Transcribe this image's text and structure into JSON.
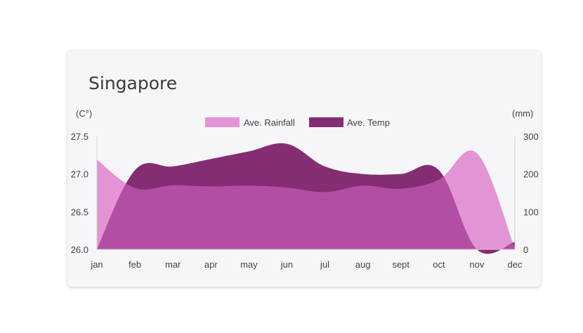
{
  "card": {
    "title": "Singapore"
  },
  "chart_data": {
    "type": "area",
    "categories": [
      "jan",
      "feb",
      "mar",
      "apr",
      "may",
      "jun",
      "jul",
      "aug",
      "sept",
      "oct",
      "nov",
      "dec"
    ],
    "y_left": {
      "unit": "(C°)",
      "ticks": [
        "27.5",
        "27.0",
        "26.5",
        "26.0"
      ],
      "range": [
        26.0,
        27.5
      ]
    },
    "y_right": {
      "unit": "(mm)",
      "ticks": [
        "300",
        "200",
        "100",
        "0"
      ],
      "range": [
        0,
        300
      ]
    },
    "series": [
      {
        "name": "Ave. Rainfall",
        "axis": "right",
        "color": "#e394d4",
        "values": [
          238,
          163,
          170,
          167,
          169,
          164,
          152,
          169,
          161,
          185,
          255,
          2
        ]
      },
      {
        "name": "Ave. Temp",
        "axis": "left",
        "color": "#852d73",
        "values": [
          26.0,
          27.05,
          27.1,
          27.2,
          27.3,
          27.4,
          27.1,
          27.0,
          27.0,
          27.05,
          26.0,
          26.1
        ]
      }
    ],
    "overlap_color": "#b24ea4",
    "legend": "top",
    "grid": false
  }
}
